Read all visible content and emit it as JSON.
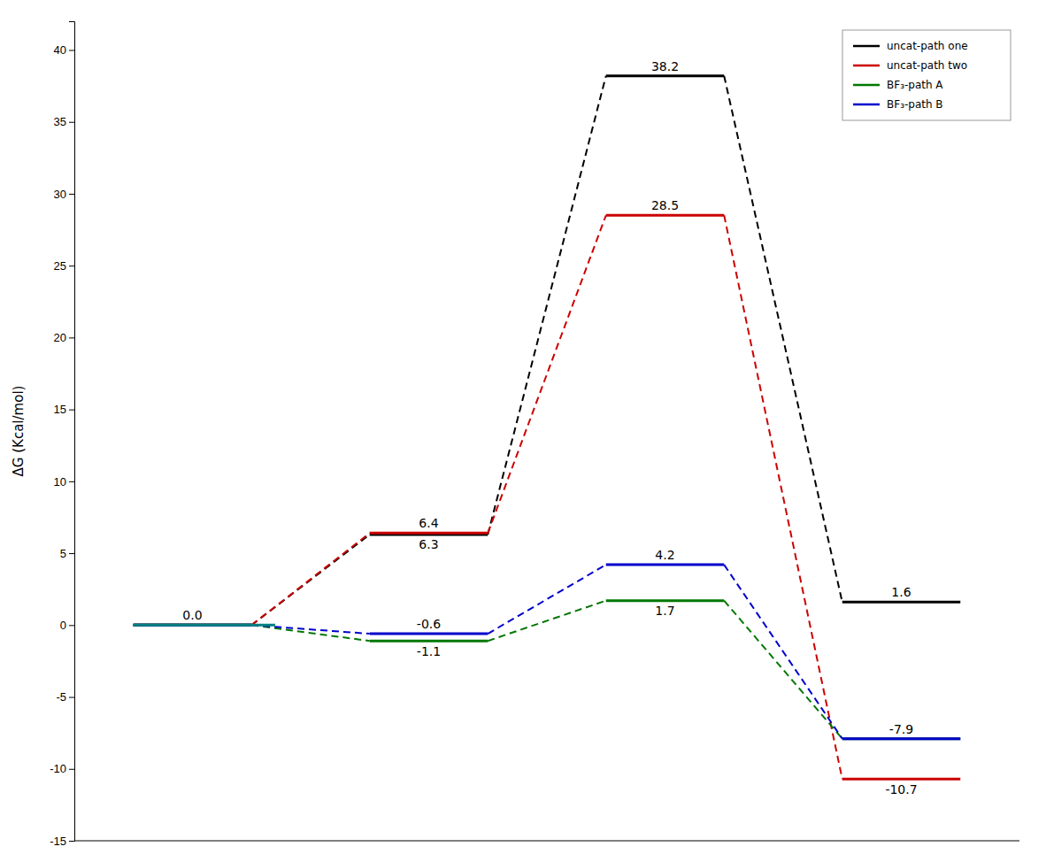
{
  "chart_data": {
    "type": "energy_profile",
    "y_label": "ΔG (Kcal/mol)",
    "categories": [
      null,
      null,
      null,
      null
    ],
    "series": [
      {
        "name": "uncat-path one",
        "color": "#000000",
        "values": [
          0.0,
          6.3,
          38.2,
          1.6
        ],
        "value_labels": [
          "0.0",
          "6.3",
          "38.2",
          "1.6"
        ]
      },
      {
        "name": "uncat-path two",
        "color": "#cc0000",
        "values": [
          0.0,
          6.4,
          28.5,
          -10.7
        ],
        "value_labels": [
          null,
          "6.4",
          "28.5",
          "-10.7"
        ]
      },
      {
        "name": "BF₃-path A",
        "color": "#007700",
        "values": [
          0.0,
          -1.1,
          1.7,
          -7.9
        ],
        "value_labels": [
          null,
          "-1.1",
          "1.7",
          "-7.9"
        ]
      },
      {
        "name": "BF₃-path B",
        "color": "#0000cc",
        "values": [
          0.0,
          -0.6,
          4.2,
          -7.9
        ],
        "value_labels": [
          null,
          "-0.6",
          "4.2",
          null
        ]
      }
    ],
    "baseline": {
      "value": 0.0,
      "color": "#008080"
    },
    "ylim": [
      -15,
      42
    ],
    "yticks": [
      -15,
      -10,
      -5,
      0,
      5,
      10,
      15,
      20,
      25,
      30,
      35,
      40
    ],
    "grid": false,
    "legend": "upper right",
    "data_labels": true,
    "tick_labels": "y",
    "line_style": "dashed"
  }
}
